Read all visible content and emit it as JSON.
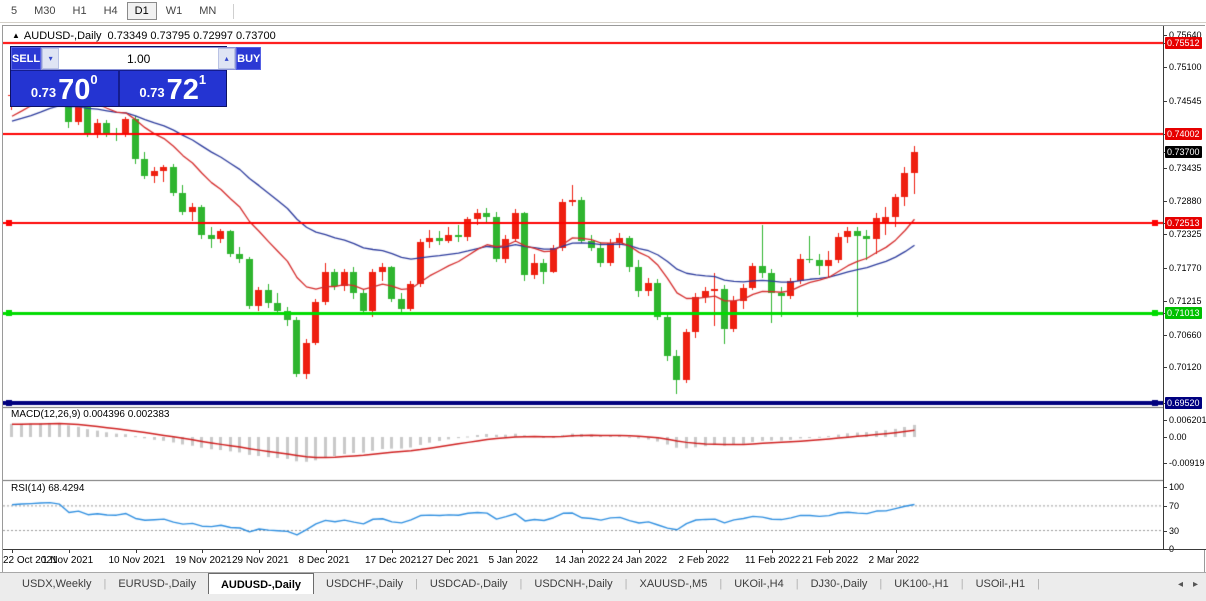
{
  "toolbar": {
    "items": [
      "5",
      "M30",
      "H1",
      "H4",
      "D1",
      "W1",
      "MN"
    ],
    "active": "D1"
  },
  "title": {
    "marker": "▲",
    "symbol": "AUDUSD-,Daily",
    "ohlc": "0.73349 0.73795 0.72997 0.73700"
  },
  "trade_widget": {
    "sell_label": "SELL",
    "buy_label": "BUY",
    "volume": "1.00",
    "down_icon": "▾",
    "up_icon": "▴",
    "sell_price": {
      "prefix": "0.73",
      "big": "70",
      "sup": "0"
    },
    "buy_price": {
      "prefix": "0.73",
      "big": "72",
      "sup": "1"
    },
    "panel_color": "#2434d2"
  },
  "price_axis": {
    "labels": [
      {
        "text": "0.75640",
        "style": "plain"
      },
      {
        "text": "0.75512",
        "style": "red"
      },
      {
        "text": "0.75100",
        "style": "plain"
      },
      {
        "text": "0.74545",
        "style": "plain"
      },
      {
        "text": "0.74002",
        "style": "red"
      },
      {
        "text": "0.73700",
        "style": "black"
      },
      {
        "text": "0.73435",
        "style": "plain"
      },
      {
        "text": "0.72880",
        "style": "plain"
      },
      {
        "text": "0.72513",
        "style": "red"
      },
      {
        "text": "0.72325",
        "style": "plain"
      },
      {
        "text": "0.71770",
        "style": "plain"
      },
      {
        "text": "0.71215",
        "style": "plain"
      },
      {
        "text": "0.71013",
        "style": "green"
      },
      {
        "text": "0.70660",
        "style": "plain"
      },
      {
        "text": "0.70120",
        "style": "plain"
      },
      {
        "text": "0.69520",
        "style": "navy"
      }
    ]
  },
  "macd_panel": {
    "label": "MACD(12,26,9) 0.004396 0.002383",
    "axis": [
      {
        "text": "0.006201",
        "value": 0.0062
      },
      {
        "text": "0.00",
        "value": 0
      },
      {
        "text": "-0.00919",
        "value": -0.00919
      }
    ]
  },
  "rsi_panel": {
    "label": "RSI(14) 68.4294",
    "axis": [
      {
        "text": "100",
        "value": 100
      },
      {
        "text": "70",
        "value": 70
      },
      {
        "text": "30",
        "value": 30
      },
      {
        "text": "0",
        "value": 0
      }
    ]
  },
  "date_axis": {
    "labels": [
      {
        "text": "22 Oct 2021",
        "bar": 0
      },
      {
        "text": "1 Nov 2021",
        "bar": 6
      },
      {
        "text": "10 Nov 2021",
        "bar": 13
      },
      {
        "text": "19 Nov 2021",
        "bar": 20
      },
      {
        "text": "29 Nov 2021",
        "bar": 26
      },
      {
        "text": "8 Dec 2021",
        "bar": 33
      },
      {
        "text": "17 Dec 2021",
        "bar": 40
      },
      {
        "text": "27 Dec 2021",
        "bar": 46
      },
      {
        "text": "5 Jan 2022",
        "bar": 53
      },
      {
        "text": "14 Jan 2022",
        "bar": 60
      },
      {
        "text": "24 Jan 2022",
        "bar": 66
      },
      {
        "text": "2 Feb 2022",
        "bar": 73
      },
      {
        "text": "11 Feb 2022",
        "bar": 80
      },
      {
        "text": "21 Feb 2022",
        "bar": 86
      },
      {
        "text": "2 Mar 2022",
        "bar": 93
      }
    ]
  },
  "tab_bar": {
    "tabs": [
      "USDX,Weekly",
      "EURUSD-,Daily",
      "AUDUSD-,Daily",
      "USDCHF-,Daily",
      "USDCAD-,Daily",
      "USDCNH-,Daily",
      "XAUUSD-,M5",
      "UKOil-,H4",
      "DJ30-,Daily",
      "UK100-,H1",
      "USOil-,H1"
    ],
    "active_index": 2,
    "scroll_left_icon": "◂",
    "scroll_right_icon": "▸"
  },
  "chart_data": {
    "type": "candlestick",
    "symbol": "AUDUSD-",
    "timeframe": "Daily",
    "visible_range": {
      "start": "22 Oct 2021",
      "end": "4 Mar 2022"
    },
    "ylim": [
      0.6948,
      0.7574
    ],
    "last_ohlc": {
      "open": 0.73349,
      "high": 0.73795,
      "low": 0.72997,
      "close": 0.737
    },
    "colors": {
      "bull_candle": "#ee1f10",
      "bear_candle": "#2fb52f",
      "ma_fast": "#d42a2a",
      "ma_slow": "#2b3a9c",
      "macd_histogram": "#c9c9c9",
      "macd_signal": "#cf2020",
      "rsi_line": "#2f8fe0",
      "rsi_levels": "#9a9a9a"
    },
    "indicators": {
      "ma_fast": {
        "type": "ema",
        "period": 13
      },
      "ma_slow": {
        "type": "ema",
        "period": 30
      },
      "macd": {
        "fast": 12,
        "slow": 26,
        "signal_period": 9,
        "current_macd": 0.004396,
        "current_signal": 0.002383
      },
      "rsi": {
        "period": 14,
        "current": 68.4294,
        "levels": [
          70,
          30
        ]
      }
    },
    "hlines": [
      {
        "price": 0.75512,
        "color": "#fe0000",
        "width": 2,
        "selected": false
      },
      {
        "price": 0.74002,
        "color": "#fe0000",
        "width": 2,
        "selected": false
      },
      {
        "price": 0.72513,
        "color": "#fe0000",
        "width": 2,
        "selected": true
      },
      {
        "price": 0.71013,
        "color": "#00dc00",
        "width": 3,
        "selected": true
      },
      {
        "price": 0.6952,
        "color": "#00007e",
        "width": 4,
        "selected": true
      }
    ],
    "candles": [
      [
        0.7462,
        0.7472,
        0.744,
        0.7465
      ],
      [
        0.7465,
        0.7492,
        0.746,
        0.7488
      ],
      [
        0.7488,
        0.7505,
        0.7478,
        0.75
      ],
      [
        0.75,
        0.7522,
        0.749,
        0.7518
      ],
      [
        0.7518,
        0.7536,
        0.751,
        0.753
      ],
      [
        0.753,
        0.7535,
        0.7505,
        0.7515
      ],
      [
        0.7515,
        0.752,
        0.741,
        0.742
      ],
      [
        0.742,
        0.7452,
        0.7415,
        0.7448
      ],
      [
        0.7448,
        0.745,
        0.7395,
        0.74
      ],
      [
        0.74,
        0.7425,
        0.7392,
        0.7418
      ],
      [
        0.7418,
        0.7422,
        0.7395,
        0.74
      ],
      [
        0.74,
        0.741,
        0.7388,
        0.7398
      ],
      [
        0.7398,
        0.7428,
        0.7395,
        0.7424
      ],
      [
        0.7424,
        0.743,
        0.735,
        0.7358
      ],
      [
        0.7358,
        0.737,
        0.7325,
        0.733
      ],
      [
        0.733,
        0.7345,
        0.7318,
        0.7338
      ],
      [
        0.7338,
        0.7348,
        0.732,
        0.7345
      ],
      [
        0.7345,
        0.735,
        0.7296,
        0.7302
      ],
      [
        0.7302,
        0.7315,
        0.7265,
        0.727
      ],
      [
        0.727,
        0.7285,
        0.7255,
        0.7278
      ],
      [
        0.7278,
        0.7282,
        0.7225,
        0.7232
      ],
      [
        0.7232,
        0.7245,
        0.721,
        0.7225
      ],
      [
        0.7225,
        0.7242,
        0.7218,
        0.7238
      ],
      [
        0.7238,
        0.724,
        0.7195,
        0.72
      ],
      [
        0.72,
        0.7212,
        0.7185,
        0.7192
      ],
      [
        0.7192,
        0.7195,
        0.7108,
        0.7113
      ],
      [
        0.7113,
        0.7145,
        0.7105,
        0.714
      ],
      [
        0.714,
        0.715,
        0.711,
        0.7118
      ],
      [
        0.7118,
        0.7135,
        0.71,
        0.7105
      ],
      [
        0.7105,
        0.7112,
        0.708,
        0.709
      ],
      [
        0.709,
        0.7095,
        0.6995,
        0.7
      ],
      [
        0.7,
        0.7058,
        0.6993,
        0.7052
      ],
      [
        0.7052,
        0.7125,
        0.7048,
        0.712
      ],
      [
        0.712,
        0.7185,
        0.7115,
        0.717
      ],
      [
        0.717,
        0.7175,
        0.714,
        0.7147
      ],
      [
        0.7147,
        0.7175,
        0.7138,
        0.717
      ],
      [
        0.717,
        0.7178,
        0.7125,
        0.7135
      ],
      [
        0.7135,
        0.714,
        0.7098,
        0.7105
      ],
      [
        0.7105,
        0.7175,
        0.7095,
        0.717
      ],
      [
        0.717,
        0.7185,
        0.7155,
        0.7178
      ],
      [
        0.7178,
        0.718,
        0.712,
        0.7126
      ],
      [
        0.7126,
        0.7135,
        0.71,
        0.7108
      ],
      [
        0.7108,
        0.7155,
        0.7105,
        0.715
      ],
      [
        0.715,
        0.7225,
        0.7145,
        0.722
      ],
      [
        0.722,
        0.724,
        0.721,
        0.7227
      ],
      [
        0.7227,
        0.7238,
        0.7215,
        0.7222
      ],
      [
        0.7222,
        0.7245,
        0.7218,
        0.7232
      ],
      [
        0.7232,
        0.7248,
        0.722,
        0.7228
      ],
      [
        0.7228,
        0.7262,
        0.7222,
        0.7258
      ],
      [
        0.7258,
        0.7275,
        0.7248,
        0.7268
      ],
      [
        0.7268,
        0.7277,
        0.7252,
        0.7262
      ],
      [
        0.7262,
        0.727,
        0.7186,
        0.7192
      ],
      [
        0.7192,
        0.7232,
        0.7185,
        0.7225
      ],
      [
        0.7225,
        0.7275,
        0.722,
        0.7268
      ],
      [
        0.7268,
        0.727,
        0.7155,
        0.7165
      ],
      [
        0.7165,
        0.72,
        0.7158,
        0.7185
      ],
      [
        0.7185,
        0.7192,
        0.715,
        0.717
      ],
      [
        0.717,
        0.7215,
        0.7168,
        0.721
      ],
      [
        0.721,
        0.7292,
        0.7205,
        0.7286
      ],
      [
        0.7286,
        0.7315,
        0.728,
        0.729
      ],
      [
        0.729,
        0.7295,
        0.7218,
        0.7222
      ],
      [
        0.7222,
        0.7232,
        0.7205,
        0.721
      ],
      [
        0.721,
        0.722,
        0.7178,
        0.7185
      ],
      [
        0.7185,
        0.7225,
        0.718,
        0.7218
      ],
      [
        0.7218,
        0.7235,
        0.721,
        0.7226
      ],
      [
        0.7226,
        0.723,
        0.717,
        0.7178
      ],
      [
        0.7178,
        0.719,
        0.7128,
        0.7138
      ],
      [
        0.7138,
        0.716,
        0.713,
        0.7152
      ],
      [
        0.7152,
        0.7158,
        0.709,
        0.7096
      ],
      [
        0.7096,
        0.71,
        0.7022,
        0.703
      ],
      [
        0.703,
        0.704,
        0.6968,
        0.699
      ],
      [
        0.699,
        0.7075,
        0.6985,
        0.707
      ],
      [
        0.707,
        0.7135,
        0.706,
        0.7128
      ],
      [
        0.7128,
        0.7145,
        0.7118,
        0.7138
      ],
      [
        0.7138,
        0.7168,
        0.708,
        0.7142
      ],
      [
        0.7142,
        0.7148,
        0.705,
        0.7075
      ],
      [
        0.7075,
        0.713,
        0.707,
        0.7122
      ],
      [
        0.7122,
        0.715,
        0.7108,
        0.7143
      ],
      [
        0.7143,
        0.7185,
        0.714,
        0.718
      ],
      [
        0.718,
        0.7248,
        0.716,
        0.7168
      ],
      [
        0.7168,
        0.7175,
        0.7085,
        0.7135
      ],
      [
        0.7135,
        0.7145,
        0.7095,
        0.713
      ],
      [
        0.713,
        0.716,
        0.7125,
        0.7155
      ],
      [
        0.7155,
        0.72,
        0.715,
        0.7192
      ],
      [
        0.7192,
        0.723,
        0.7185,
        0.719
      ],
      [
        0.719,
        0.72,
        0.7165,
        0.718
      ],
      [
        0.718,
        0.7205,
        0.716,
        0.719
      ],
      [
        0.719,
        0.7235,
        0.7185,
        0.7228
      ],
      [
        0.7228,
        0.7245,
        0.7218,
        0.7238
      ],
      [
        0.7238,
        0.7245,
        0.7095,
        0.723
      ],
      [
        0.723,
        0.724,
        0.719,
        0.7225
      ],
      [
        0.7225,
        0.7268,
        0.72,
        0.726
      ],
      [
        0.725,
        0.7278,
        0.7232,
        0.7262
      ],
      [
        0.7262,
        0.73,
        0.7245,
        0.7295
      ],
      [
        0.7295,
        0.7345,
        0.728,
        0.7335
      ],
      [
        0.73349,
        0.73795,
        0.72997,
        0.737
      ]
    ]
  }
}
